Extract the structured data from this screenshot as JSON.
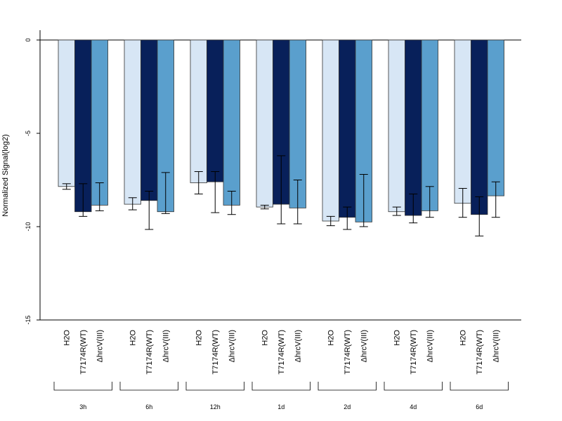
{
  "chart_data": {
    "type": "bar",
    "ylabel": "Normalized Signal(log2)",
    "ylim": [
      -15,
      0.5
    ],
    "yticks": [
      0,
      -5,
      -10,
      -15
    ],
    "grid": false,
    "group_labels": [
      "3h",
      "6h",
      "12h",
      "1d",
      "2d",
      "4d",
      "6d"
    ],
    "bar_labels": [
      "H2O",
      "T7174R(WT)",
      "ΔhrcV(III)"
    ],
    "colors": [
      "#d7e6f5",
      "#08205a",
      "#5a9fcd"
    ],
    "series": [
      {
        "label": "H2O",
        "values": [
          -7.85,
          -8.8,
          -7.65,
          -8.95,
          -9.7,
          -9.2,
          -8.75
        ],
        "err_low": [
          -8.0,
          -9.1,
          -8.25,
          -9.05,
          -9.95,
          -9.4,
          -9.5
        ],
        "err_high": [
          -7.7,
          -8.45,
          -7.05,
          -8.85,
          -9.45,
          -8.95,
          -7.95
        ]
      },
      {
        "label": "T7174R(WT)",
        "values": [
          -9.2,
          -8.6,
          -7.6,
          -8.8,
          -9.5,
          -9.4,
          -9.35
        ],
        "err_low": [
          -9.45,
          -10.15,
          -9.25,
          -9.85,
          -10.15,
          -9.8,
          -10.5
        ],
        "err_high": [
          -7.7,
          -8.1,
          -7.05,
          -6.2,
          -8.95,
          -8.25,
          -8.4
        ]
      },
      {
        "label": "ΔhrcV(III)",
        "values": [
          -8.85,
          -9.2,
          -8.85,
          -9.0,
          -9.75,
          -9.15,
          -8.35
        ],
        "err_low": [
          -9.15,
          -9.3,
          -9.35,
          -9.85,
          -10.0,
          -9.5,
          -9.5
        ],
        "err_high": [
          -7.65,
          -7.1,
          -8.1,
          -7.5,
          -7.2,
          -7.85,
          -7.6
        ]
      }
    ]
  }
}
